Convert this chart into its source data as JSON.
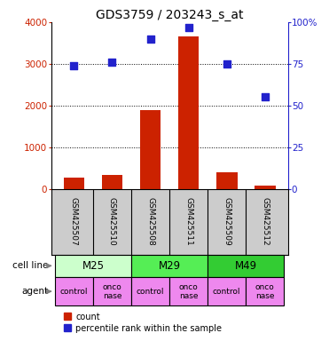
{
  "title": "GDS3759 / 203243_s_at",
  "samples": [
    "GSM425507",
    "GSM425510",
    "GSM425508",
    "GSM425511",
    "GSM425509",
    "GSM425512"
  ],
  "counts": [
    270,
    340,
    1900,
    3650,
    400,
    80
  ],
  "percentile_ranks": [
    74,
    76,
    90,
    97,
    75,
    55
  ],
  "cell_lines": [
    {
      "label": "M25",
      "span": [
        0,
        2
      ],
      "color": "#ccffcc"
    },
    {
      "label": "M29",
      "span": [
        2,
        4
      ],
      "color": "#55ee55"
    },
    {
      "label": "M49",
      "span": [
        4,
        6
      ],
      "color": "#33cc33"
    }
  ],
  "bar_color": "#cc2200",
  "dot_color": "#2222cc",
  "left_ylim": [
    0,
    4000
  ],
  "left_yticks": [
    0,
    1000,
    2000,
    3000,
    4000
  ],
  "right_ylim": [
    0,
    100
  ],
  "right_yticks": [
    0,
    25,
    50,
    75,
    100
  ],
  "right_yticklabels": [
    "0",
    "25",
    "50",
    "75",
    "100%"
  ],
  "grid_values": [
    1000,
    2000,
    3000
  ],
  "sample_bg": "#cccccc",
  "agent_color": "#ee88ee",
  "bg_color": "#ffffff",
  "left_label_color": "#cc2200",
  "right_label_color": "#2222cc"
}
